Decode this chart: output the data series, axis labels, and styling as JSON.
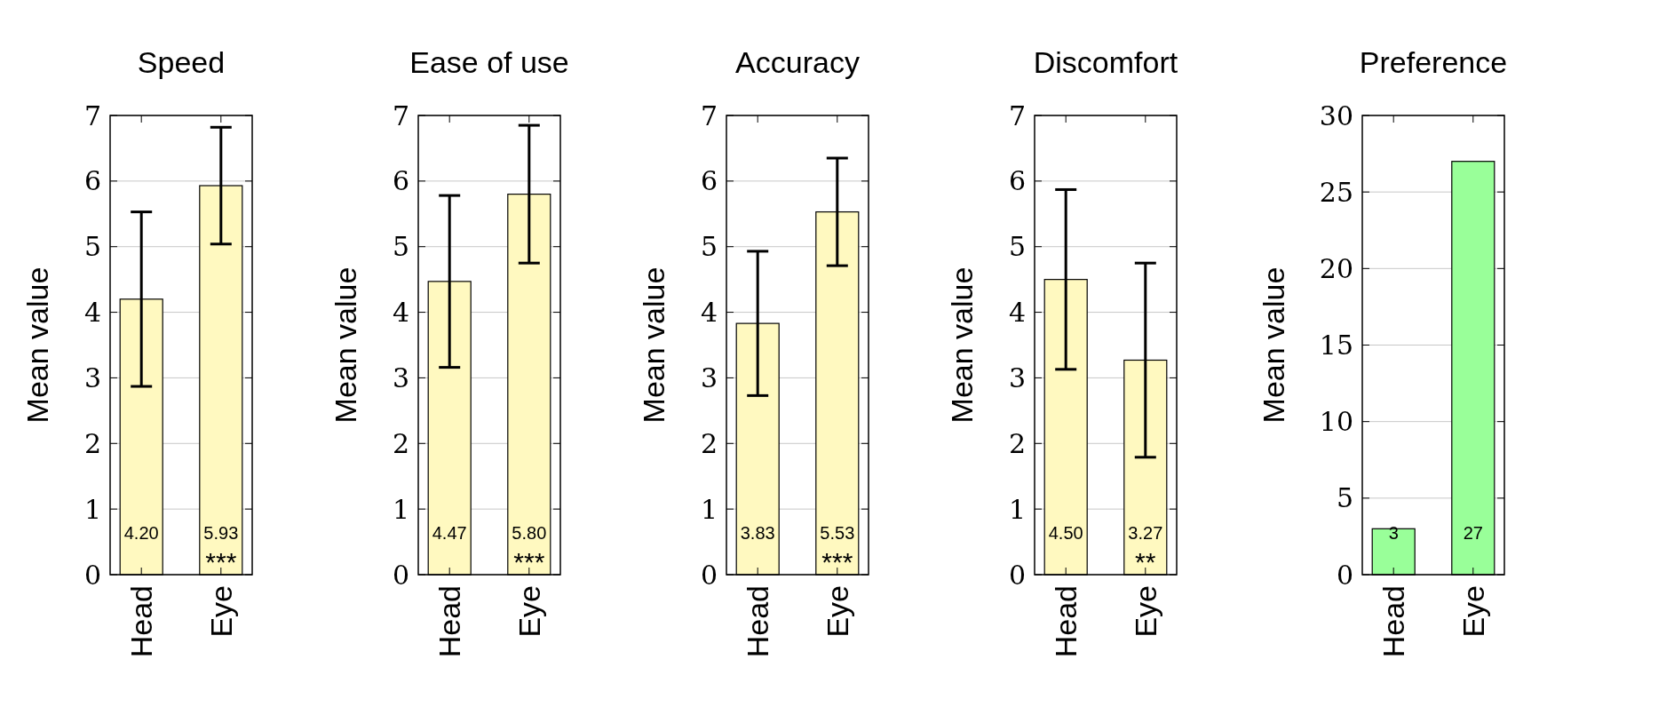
{
  "chart_data": [
    {
      "type": "bar",
      "title": "Speed",
      "ylabel": "Mean value",
      "categories": [
        "Head",
        "Eye"
      ],
      "values": [
        4.2,
        5.93
      ],
      "errors": [
        1.33,
        0.89
      ],
      "value_labels": [
        "4.20",
        "5.93"
      ],
      "color": "#fff9c0",
      "ylim": [
        0,
        7
      ],
      "yticks": [
        0,
        1,
        2,
        3,
        4,
        5,
        6,
        7
      ],
      "grid": "y",
      "annotations": [
        "***"
      ]
    },
    {
      "type": "bar",
      "title": "Ease of use",
      "ylabel": "Mean value",
      "categories": [
        "Head",
        "Eye"
      ],
      "values": [
        4.47,
        5.8
      ],
      "errors": [
        1.31,
        1.05
      ],
      "value_labels": [
        "4.47",
        "5.80"
      ],
      "color": "#fff9c0",
      "ylim": [
        0,
        7
      ],
      "yticks": [
        0,
        1,
        2,
        3,
        4,
        5,
        6,
        7
      ],
      "grid": "y",
      "annotations": [
        "***"
      ]
    },
    {
      "type": "bar",
      "title": "Accuracy",
      "ylabel": "Mean value",
      "categories": [
        "Head",
        "Eye"
      ],
      "values": [
        3.83,
        5.53
      ],
      "errors": [
        1.1,
        0.82
      ],
      "value_labels": [
        "3.83",
        "5.53"
      ],
      "color": "#fff9c0",
      "ylim": [
        0,
        7
      ],
      "yticks": [
        0,
        1,
        2,
        3,
        4,
        5,
        6,
        7
      ],
      "grid": "y",
      "annotations": [
        "***"
      ]
    },
    {
      "type": "bar",
      "title": "Discomfort",
      "ylabel": "Mean value",
      "categories": [
        "Head",
        "Eye"
      ],
      "values": [
        4.5,
        3.27
      ],
      "errors": [
        1.37,
        1.48
      ],
      "value_labels": [
        "4.50",
        "3.27"
      ],
      "color": "#fff9c0",
      "ylim": [
        0,
        7
      ],
      "yticks": [
        0,
        1,
        2,
        3,
        4,
        5,
        6,
        7
      ],
      "grid": "y",
      "annotations": [
        "**"
      ]
    },
    {
      "type": "bar",
      "title": "Preference",
      "ylabel": "Mean value",
      "categories": [
        "Head",
        "Eye"
      ],
      "values": [
        3,
        27
      ],
      "value_labels": [
        "3",
        "27"
      ],
      "color": "#99ff99",
      "ylim": [
        0,
        30
      ],
      "yticks": [
        0,
        5,
        10,
        15,
        20,
        25,
        30
      ],
      "grid": "y"
    }
  ]
}
